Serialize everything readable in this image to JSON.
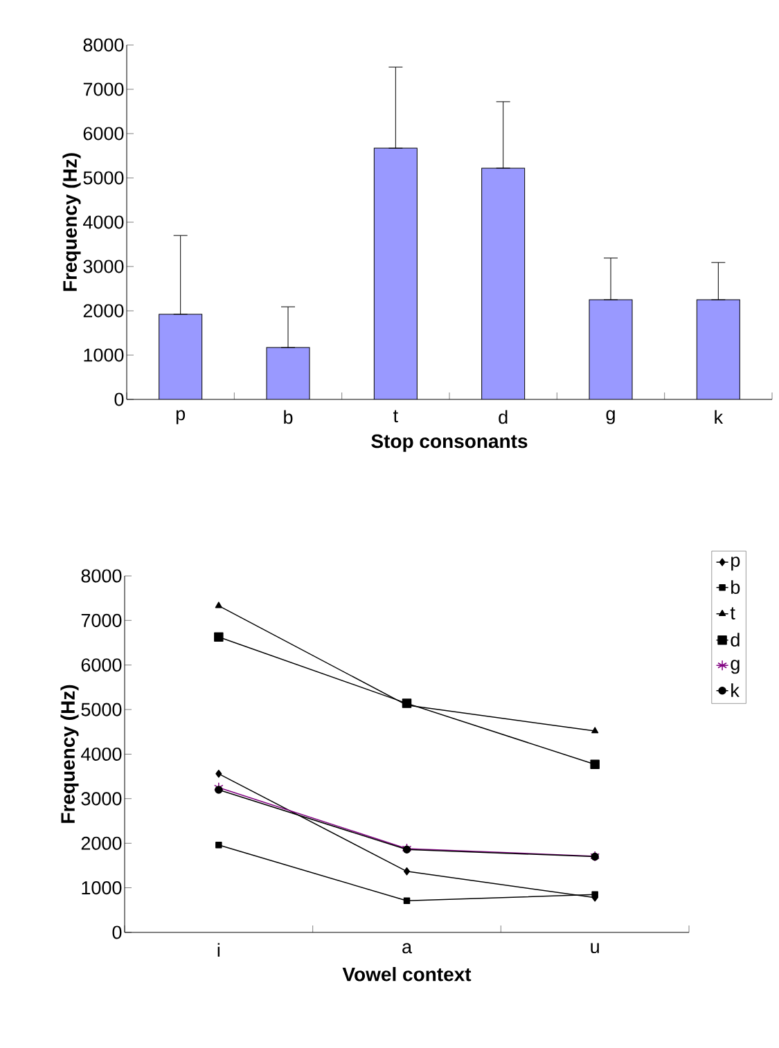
{
  "chart_data": [
    {
      "type": "bar",
      "xlabel": "Stop consonants",
      "ylabel": "Frequency (Hz)",
      "categories": [
        "p",
        "b",
        "t",
        "d",
        "g",
        "k"
      ],
      "values": [
        1920,
        1170,
        5670,
        5220,
        2250,
        2250
      ],
      "errors": [
        [
          1920,
          3700
        ],
        [
          1170,
          2090
        ],
        [
          5670,
          7500
        ],
        [
          5220,
          6720
        ],
        [
          2250,
          3190
        ],
        [
          2250,
          3090
        ]
      ],
      "color": "#9999ff",
      "ylim": [
        0,
        8000
      ],
      "yticks": [
        0,
        1000,
        2000,
        3000,
        4000,
        5000,
        6000,
        7000,
        8000
      ],
      "grid": false,
      "legend": false
    },
    {
      "type": "line",
      "xlabel": "Vowel context",
      "ylabel": "Frequency (Hz)",
      "categories": [
        "i",
        "a",
        "u"
      ],
      "ylim": [
        0,
        8000
      ],
      "yticks": [
        0,
        1000,
        2000,
        3000,
        4000,
        5000,
        6000,
        7000,
        8000
      ],
      "grid": false,
      "legend": "top right",
      "series": [
        {
          "name": "p",
          "color": "#000000",
          "marker": "diamond",
          "values": [
            3560,
            1370,
            780
          ]
        },
        {
          "name": "b",
          "color": "#000000",
          "marker": "square",
          "values": [
            1960,
            710,
            850
          ]
        },
        {
          "name": "t",
          "color": "#000000",
          "marker": "triangle",
          "values": [
            7330,
            5100,
            4520
          ]
        },
        {
          "name": "d",
          "color": "#000000",
          "marker": "square",
          "values": [
            6630,
            5140,
            3770
          ]
        },
        {
          "name": "g",
          "color": "#800080",
          "marker": "cross",
          "values": [
            3250,
            1880,
            1710
          ]
        },
        {
          "name": "k",
          "color": "#000000",
          "marker": "circle",
          "values": [
            3200,
            1860,
            1700
          ]
        }
      ]
    }
  ]
}
